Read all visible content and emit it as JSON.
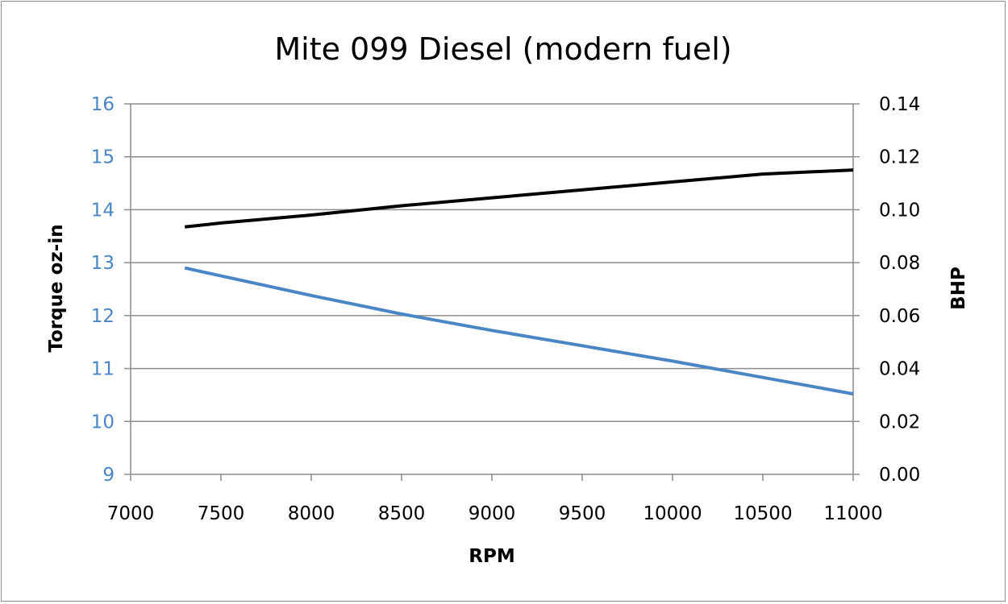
{
  "chart_data": {
    "type": "line",
    "title": "Mite 099 Diesel (modern fuel)",
    "xlabel": "RPM",
    "ylabel_left": "Torque  oz-in",
    "ylabel_right": "BHP",
    "xlim": [
      7000,
      11000
    ],
    "ylim_left": [
      9,
      16
    ],
    "ylim_right": [
      0.0,
      0.14
    ],
    "x_ticks": [
      "7000",
      "7500",
      "8000",
      "8500",
      "9000",
      "9500",
      "10000",
      "10500",
      "11000"
    ],
    "y_left_ticks": [
      "9",
      "10",
      "11",
      "12",
      "13",
      "14",
      "15",
      "16"
    ],
    "y_right_ticks": [
      "0.00",
      "0.02",
      "0.04",
      "0.06",
      "0.08",
      "0.10",
      "0.12",
      "0.14"
    ],
    "grid": true,
    "legend": "none",
    "series": [
      {
        "axis": "left",
        "color": "#4a86c5",
        "x": [
          7300,
          7500,
          8000,
          8500,
          9000,
          9500,
          10000,
          10500,
          11000
        ],
        "y": [
          12.9,
          12.75,
          12.38,
          12.03,
          11.72,
          11.43,
          11.14,
          10.83,
          10.52
        ]
      },
      {
        "axis": "right",
        "color": "#000000",
        "x": [
          7300,
          7500,
          8000,
          8500,
          9000,
          9500,
          10000,
          10500,
          11000
        ],
        "y": [
          0.0935,
          0.095,
          0.098,
          0.1015,
          0.1045,
          0.1075,
          0.1105,
          0.1135,
          0.115
        ]
      }
    ]
  }
}
